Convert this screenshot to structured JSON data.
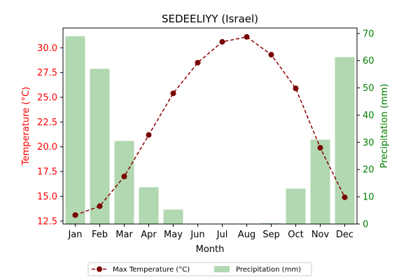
{
  "chart_data": {
    "type": "bar+line",
    "title": "SEDEELIYY (Israel)",
    "xlabel": "Month",
    "ylabel_left": "Temperature (°C)",
    "ylabel_right": "Precipitation (mm)",
    "categories": [
      "Jan",
      "Feb",
      "Mar",
      "Apr",
      "May",
      "Jun",
      "Jul",
      "Aug",
      "Sep",
      "Oct",
      "Nov",
      "Dec"
    ],
    "series": [
      {
        "name": "Max Temperature (°C)",
        "type": "line",
        "axis": "left",
        "values": [
          13.1,
          14.0,
          17.0,
          21.2,
          25.4,
          28.5,
          30.6,
          31.1,
          29.3,
          25.9,
          19.9,
          14.9
        ]
      },
      {
        "name": "Precipitation (mm)",
        "type": "bar",
        "axis": "right",
        "values": [
          69,
          57,
          30.5,
          13.5,
          5.3,
          0,
          0,
          0,
          0.3,
          13,
          31,
          61.3
        ]
      }
    ],
    "ylim_left": [
      12.2,
      32.0
    ],
    "ylim_right": [
      0,
      72
    ],
    "yticks_left": [
      "12.5",
      "15.0",
      "17.5",
      "20.0",
      "22.5",
      "25.0",
      "27.5",
      "30.0"
    ],
    "yticks_right": [
      "0",
      "10",
      "20",
      "30",
      "40",
      "50",
      "60",
      "70"
    ],
    "grid": false,
    "legend_position": "bottom-center",
    "colors": {
      "line": "#8b0000",
      "marker": "#7a0000",
      "bar": "#b1d8b1",
      "left_axis": "#ff0000",
      "right_axis": "#008000"
    }
  }
}
